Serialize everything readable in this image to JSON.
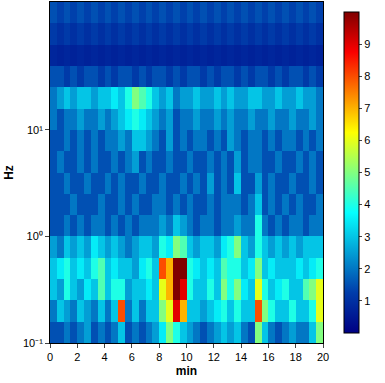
{
  "chart_data": {
    "type": "heatmap",
    "x_label": "min",
    "y_label": "Hz",
    "log": "y",
    "xlim": [
      0,
      20
    ],
    "xticks": [
      0,
      2,
      4,
      6,
      8,
      10,
      12,
      14,
      16,
      18,
      20
    ],
    "ylim": [
      0.1,
      158.5
    ],
    "yticks": [
      {
        "value": 0.1,
        "label": "10⁻¹"
      },
      {
        "value": 1,
        "label": "10⁰"
      },
      {
        "value": 10,
        "label": "10¹"
      }
    ],
    "zlim": [
      0,
      10
    ],
    "zticks": [
      1,
      2,
      3,
      4,
      5,
      6,
      7,
      8,
      9
    ],
    "x": [
      0,
      0.5,
      1,
      1.5,
      2,
      2.5,
      3,
      3.5,
      4,
      4.5,
      5,
      5.5,
      6,
      6.5,
      7,
      7.5,
      8,
      8.5,
      9,
      9.5,
      10,
      10.5,
      11,
      11.5,
      12,
      12.5,
      13,
      13.5,
      14,
      14.5,
      15,
      15.5,
      16,
      16.5,
      17,
      17.5,
      18,
      18.5,
      19,
      19.5,
      20
    ],
    "y": [
      0.1,
      0.1585,
      0.2512,
      0.3981,
      0.631,
      1,
      1.585,
      2.512,
      3.981,
      6.31,
      10,
      15.85,
      25.12,
      39.81,
      63.1,
      100,
      158.5
    ],
    "z": [
      [
        1.5,
        1.5,
        2,
        1.5,
        2,
        2.5,
        1.5,
        2,
        1.5,
        2,
        3,
        1.5,
        2,
        1.5,
        2,
        2.5,
        3.5,
        5,
        4,
        3,
        2.5,
        2,
        1.5,
        2,
        2.5,
        3,
        2.5,
        3,
        2,
        1.5,
        5,
        3,
        2,
        1.5,
        2,
        2.5,
        2,
        2,
        3,
        5
      ],
      [
        2,
        3,
        2.5,
        2,
        3,
        2.5,
        2,
        3,
        2,
        3,
        8,
        2,
        3,
        2,
        3,
        3,
        5,
        6,
        9,
        7,
        3,
        3,
        2.5,
        3,
        3.5,
        4,
        3,
        4,
        3,
        3,
        8,
        5,
        4,
        3,
        3,
        4,
        3,
        3,
        4,
        6
      ],
      [
        3,
        2.5,
        4,
        3,
        2.5,
        3.5,
        3,
        4.5,
        3,
        4,
        4,
        2.5,
        3,
        3,
        3.5,
        3,
        6,
        7,
        10,
        9,
        4,
        3,
        3,
        4,
        3,
        5,
        4,
        5,
        3.5,
        3,
        6,
        4,
        3,
        3.5,
        4,
        3,
        3,
        4.5,
        5,
        6
      ],
      [
        3,
        3.5,
        4,
        3,
        3.5,
        3,
        4,
        4.5,
        3,
        3.5,
        3,
        3,
        2.5,
        3.5,
        4,
        3,
        8,
        7,
        10,
        10,
        4,
        3.5,
        3,
        3.5,
        3,
        4.5,
        4,
        4,
        3,
        3.5,
        5,
        3,
        3.5,
        3,
        3,
        3,
        3.5,
        3,
        3.5,
        4
      ],
      [
        2.5,
        2,
        3,
        2.5,
        3,
        2.5,
        3.5,
        3,
        2.5,
        3,
        2.5,
        2,
        2.5,
        3,
        3,
        2.5,
        4,
        3.5,
        5,
        4.5,
        3,
        2.5,
        3,
        3,
        2.5,
        3.5,
        4,
        5,
        3,
        2.5,
        4,
        3,
        2.5,
        3,
        2.5,
        3,
        2.5,
        3,
        3,
        3
      ],
      [
        1.5,
        1.5,
        2,
        1.5,
        2,
        1.5,
        2,
        2,
        1.5,
        2,
        1.5,
        2,
        1.5,
        2,
        2,
        2,
        2.5,
        2,
        3,
        2.5,
        2,
        1.5,
        2,
        2,
        1.5,
        2,
        2,
        2.5,
        2,
        2,
        4,
        2,
        1.5,
        2,
        1.5,
        2,
        2,
        1.5,
        2,
        2
      ],
      [
        1.5,
        1.5,
        1.5,
        2,
        1.5,
        1.5,
        1.5,
        2,
        1.5,
        1.5,
        2,
        1.5,
        2,
        1.5,
        1.5,
        2,
        2,
        1.5,
        2,
        1.5,
        2,
        1.5,
        1.5,
        2,
        1.5,
        2,
        2,
        2,
        1.5,
        2,
        3,
        1.5,
        2,
        1.5,
        2,
        1.5,
        2,
        1.5,
        1.5,
        2
      ],
      [
        1.5,
        1.5,
        2,
        1.5,
        1.5,
        2,
        1.5,
        1.5,
        2,
        1.5,
        2,
        1.5,
        1.5,
        2,
        1.5,
        1.5,
        2,
        1.5,
        1.5,
        2,
        1.5,
        2,
        1.5,
        2.5,
        1.5,
        2,
        1.5,
        3,
        1.5,
        1.5,
        2.5,
        1.5,
        2,
        1.5,
        1.5,
        2,
        1.5,
        1.5,
        2,
        1.5
      ],
      [
        1.5,
        2,
        1.5,
        1.5,
        2,
        1.5,
        2,
        1.5,
        1.5,
        2,
        1.5,
        2,
        2.5,
        1.5,
        2,
        1.5,
        1.5,
        2,
        1.5,
        1.5,
        2,
        1.5,
        1.5,
        2,
        1.5,
        2,
        1.5,
        2.5,
        1.5,
        2,
        2,
        1.5,
        1.5,
        2,
        1.5,
        1.5,
        2,
        1.5,
        2,
        1.5
      ],
      [
        1.5,
        1.5,
        2,
        1.5,
        2,
        1.5,
        2,
        1.5,
        2,
        2,
        2.5,
        2,
        3,
        3,
        2.5,
        2,
        1.5,
        2.5,
        1.5,
        2,
        1.5,
        2,
        2,
        1.5,
        2,
        1.5,
        2.5,
        2,
        1.5,
        2,
        2,
        1.5,
        2,
        1.5,
        2,
        2,
        1.5,
        2,
        1.5,
        2
      ],
      [
        2,
        1.5,
        2,
        2,
        2.5,
        2,
        2,
        2.5,
        2,
        2.5,
        3,
        3.5,
        4,
        3.5,
        3,
        2.5,
        2,
        2.5,
        1.5,
        2,
        2,
        2.5,
        2,
        2,
        2.5,
        2,
        2.5,
        2,
        2,
        2.5,
        2,
        2,
        2.5,
        2,
        2,
        2.5,
        2,
        2,
        2.5,
        2
      ],
      [
        2,
        2.5,
        3,
        2.5,
        3,
        3,
        2.5,
        3,
        3,
        3.5,
        3,
        4,
        5,
        4.5,
        4,
        3,
        2.5,
        3,
        2,
        2.5,
        2.5,
        3,
        2.5,
        2.5,
        3,
        2.5,
        3,
        2.5,
        2.5,
        3,
        3,
        2.5,
        2.5,
        3,
        2.5,
        2.5,
        3,
        2.5,
        2.5,
        2
      ],
      [
        1.5,
        1.5,
        1.2,
        1.5,
        1.2,
        1.5,
        1.5,
        1.2,
        1.5,
        1.2,
        1.5,
        1.5,
        1.2,
        1.5,
        1.2,
        1.5,
        1.5,
        1.2,
        1.5,
        1.2,
        1.5,
        1.5,
        1.2,
        1.5,
        1.2,
        1.5,
        1.5,
        1.2,
        1.5,
        1.2,
        1.5,
        1.5,
        1.2,
        1.5,
        1.2,
        1.5,
        1.5,
        1.2,
        1.5,
        1.2
      ],
      [
        0.8,
        0.7,
        0.8,
        0.7,
        0.8,
        0.7,
        0.8,
        0.7,
        0.8,
        0.7,
        0.8,
        0.7,
        0.8,
        0.7,
        0.8,
        0.7,
        0.8,
        0.7,
        0.8,
        0.7,
        0.8,
        0.7,
        0.8,
        0.7,
        0.8,
        0.7,
        0.8,
        0.7,
        0.8,
        0.7,
        0.8,
        0.7,
        0.8,
        0.7,
        0.8,
        0.7,
        0.8,
        0.7,
        0.8,
        0.7
      ],
      [
        1.2,
        1.0,
        1.2,
        1.0,
        1.2,
        1.0,
        1.2,
        1.0,
        1.2,
        1.0,
        1.2,
        1.0,
        1.2,
        1.0,
        1.2,
        1.0,
        1.2,
        1.0,
        1.2,
        1.0,
        1.2,
        1.0,
        1.2,
        1.0,
        1.2,
        1.0,
        1.2,
        1.0,
        1.2,
        1.0,
        1.2,
        1.0,
        1.2,
        1.0,
        1.2,
        1.0,
        1.2,
        1.0,
        1.2,
        1.0
      ],
      [
        1.5,
        1.3,
        1.5,
        1.3,
        1.5,
        1.3,
        1.5,
        1.3,
        1.5,
        1.3,
        1.5,
        1.3,
        1.5,
        1.3,
        1.5,
        1.3,
        1.5,
        1.3,
        1.5,
        1.3,
        1.5,
        1.3,
        1.5,
        1.3,
        1.5,
        1.3,
        1.5,
        1.3,
        1.5,
        1.3,
        1.5,
        1.3,
        1.5,
        1.3,
        1.5,
        1.3,
        1.5,
        1.3,
        1.5,
        1.3
      ]
    ]
  }
}
